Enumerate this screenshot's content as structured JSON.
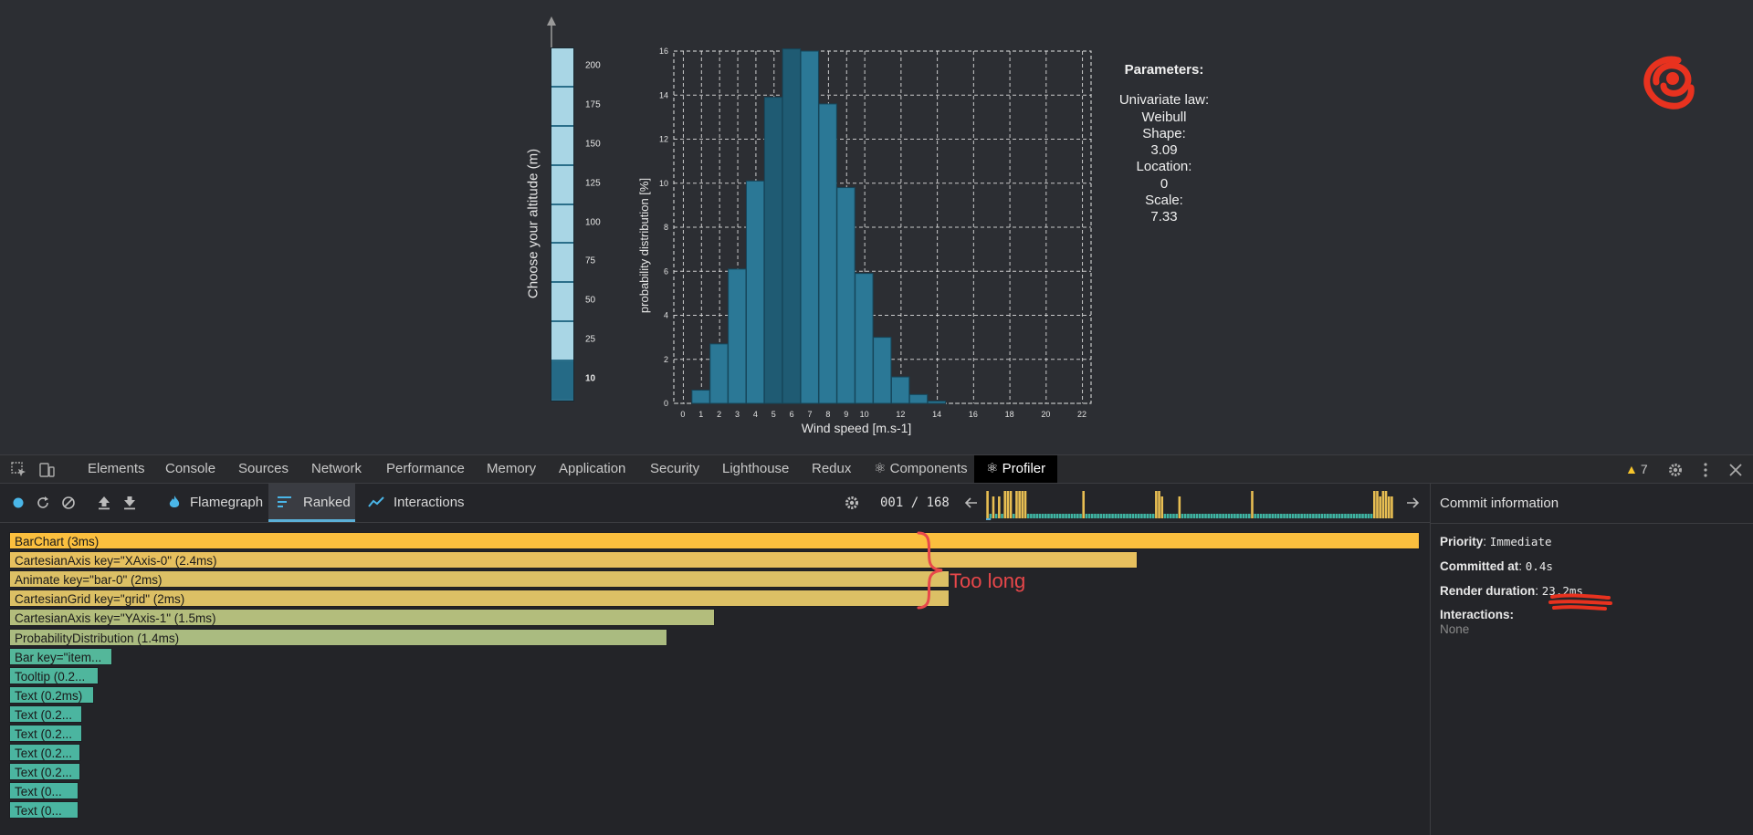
{
  "altitude": {
    "label": "Choose your altitude (m)",
    "ticks": [
      "200",
      "175",
      "150",
      "125",
      "100",
      "75",
      "50",
      "25",
      "10"
    ],
    "selected": "10"
  },
  "chart_data": {
    "type": "bar",
    "title": "",
    "xlabel": "Wind speed [m.s-1]",
    "ylabel": "probability distribution [%]",
    "x_ticks": [
      "0",
      "1",
      "2",
      "3",
      "4",
      "5",
      "6",
      "7",
      "8",
      "9",
      "10",
      "12",
      "14",
      "16",
      "18",
      "20",
      "22"
    ],
    "y_ticks": [
      "0",
      "2",
      "4",
      "6",
      "8",
      "10",
      "12",
      "14",
      "16"
    ],
    "ylim": [
      0,
      16
    ],
    "bins": [
      {
        "x": 1,
        "value": 0.6
      },
      {
        "x": 2,
        "value": 2.7
      },
      {
        "x": 3,
        "value": 6.1
      },
      {
        "x": 4,
        "value": 10.1
      },
      {
        "x": 5,
        "value": 13.9
      },
      {
        "x": 6,
        "value": 16.1
      },
      {
        "x": 7,
        "value": 16.0
      },
      {
        "x": 8,
        "value": 13.6
      },
      {
        "x": 9,
        "value": 9.8
      },
      {
        "x": 10,
        "value": 5.9
      },
      {
        "x": 11,
        "value": 3.0
      },
      {
        "x": 12,
        "value": 1.2
      },
      {
        "x": 13,
        "value": 0.4
      },
      {
        "x": 14,
        "value": 0.1
      }
    ],
    "grid": true
  },
  "parameters": {
    "title": "Parameters:",
    "lines": [
      "Univariate law:",
      "Weibull",
      "Shape:",
      "3.09",
      "Location:",
      "0",
      "Scale:",
      "7.33"
    ]
  },
  "devtools": {
    "tabs": [
      "Elements",
      "Console",
      "Sources",
      "Network",
      "Performance",
      "Memory",
      "Application",
      "Security",
      "Lighthouse",
      "Redux",
      "⚛ Components"
    ],
    "active_tab": "⚛ Profiler",
    "warnings": "7"
  },
  "profiler": {
    "tabs": {
      "flamegraph": "Flamegraph",
      "ranked": "Ranked",
      "interactions": "Interactions"
    },
    "commit_counter": "001 / 168",
    "commits": [
      3,
      0,
      2,
      0,
      2,
      0,
      3,
      3,
      3,
      0,
      3,
      3,
      3,
      3,
      0,
      0,
      0,
      0,
      0,
      0,
      0,
      0,
      0,
      0,
      0,
      0,
      0,
      0,
      0,
      0,
      0,
      0,
      0,
      3,
      0,
      0,
      0,
      0,
      0,
      0,
      0,
      0,
      0,
      0,
      0,
      0,
      0,
      0,
      0,
      0,
      0,
      0,
      0,
      0,
      0,
      0,
      0,
      0,
      3,
      3,
      2,
      0,
      0,
      0,
      0,
      0,
      2,
      0,
      0,
      0,
      0,
      0,
      0,
      0,
      0,
      0,
      0,
      0,
      0,
      0,
      0,
      0,
      0,
      0,
      0,
      0,
      0,
      0,
      0,
      0,
      0,
      3,
      0,
      0,
      0,
      0,
      0,
      0,
      0,
      0,
      0,
      0,
      0,
      0,
      0,
      0,
      0,
      0,
      0,
      0,
      0,
      0,
      0,
      0,
      0,
      0,
      0,
      0,
      0,
      0,
      0,
      0,
      0,
      0,
      0,
      0,
      0,
      0,
      0,
      0,
      0,
      0,
      0,
      3,
      3,
      2,
      3,
      3,
      2,
      2
    ],
    "selected_commit": 0,
    "ranked": [
      {
        "label": "BarChart (3ms)",
        "ms": 3.0,
        "color": "#fbbf3e"
      },
      {
        "label": "CartesianAxis key=\"XAxis-0\" (2.4ms)",
        "ms": 2.4,
        "color": "#e7c05e"
      },
      {
        "label": "Animate key=\"bar-0\" (2ms)",
        "ms": 2.0,
        "color": "#dcc065"
      },
      {
        "label": "CartesianGrid key=\"grid\" (2ms)",
        "ms": 2.0,
        "color": "#dcc065"
      },
      {
        "label": "CartesianAxis key=\"YAxis-1\" (1.5ms)",
        "ms": 1.5,
        "color": "#b3bd7c"
      },
      {
        "label": "ProbabilityDistribution (1.4ms)",
        "ms": 1.4,
        "color": "#aabb80"
      },
      {
        "label": "Bar key=\"item...",
        "ms": 0.22,
        "color": "#54b79a"
      },
      {
        "label": "Tooltip (0.2...",
        "ms": 0.19,
        "color": "#4fb69d"
      },
      {
        "label": "Text (0.2ms)",
        "ms": 0.18,
        "color": "#4db69e"
      },
      {
        "label": "Text (0.2...",
        "ms": 0.155,
        "color": "#4bb5a0"
      },
      {
        "label": "Text (0.2...",
        "ms": 0.155,
        "color": "#4bb5a0"
      },
      {
        "label": "Text (0.2...",
        "ms": 0.152,
        "color": "#4bb5a0"
      },
      {
        "label": "Text (0.2...",
        "ms": 0.152,
        "color": "#4bb5a0"
      },
      {
        "label": "Text (0...",
        "ms": 0.148,
        "color": "#4ab5a1"
      },
      {
        "label": "Text (0...",
        "ms": 0.148,
        "color": "#4ab5a1"
      }
    ],
    "annotation": "Too long"
  },
  "commit_info": {
    "title": "Commit information",
    "priority_label": "Priority",
    "priority_value": "Immediate",
    "committed_label": "Committed at",
    "committed_value": "0.4s",
    "duration_label": "Render duration",
    "duration_value": "23.2ms",
    "interactions_label": "Interactions:",
    "interactions_value": "None"
  },
  "colors": {
    "bar": "#2b7896",
    "bar_dark": "#1f5b73",
    "commit_high": "#e8be52",
    "commit_low": "#3fb5a3",
    "annotation": "#e8474a"
  }
}
